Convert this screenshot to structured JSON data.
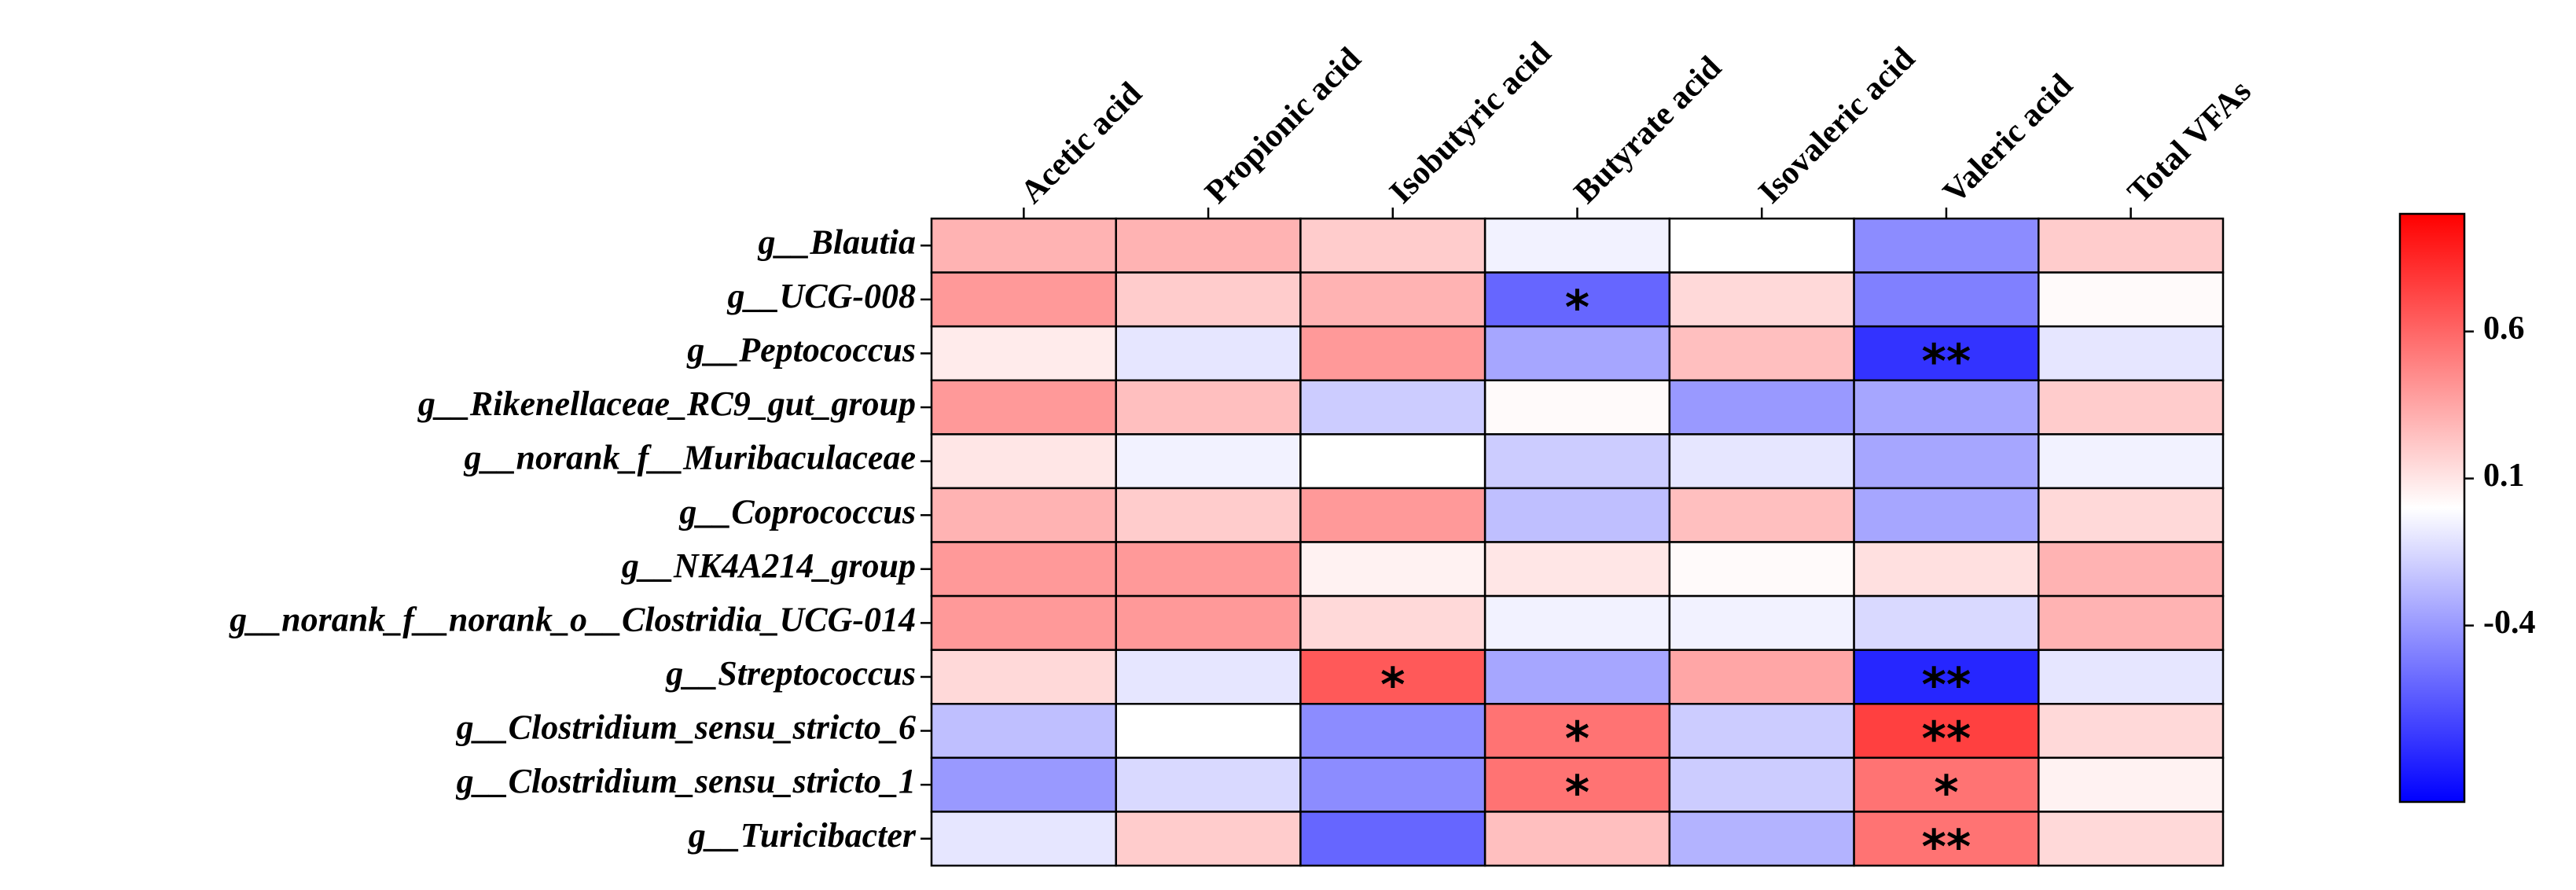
{
  "chart_data": {
    "type": "heatmap",
    "x_categories": [
      "Acetic acid",
      "Propionic acid",
      "Isobutyric acid",
      "Butyrate acid",
      "Isovaleric acid",
      "Valeric acid",
      "Total VFAs"
    ],
    "y_categories": [
      "g__Blautia",
      "g__UCG-008",
      "g__Peptococcus",
      "g__Rikenellaceae_RC9_gut_group",
      "g__norank_f__Muribaculaceae",
      "g__Coprococcus",
      "g__NK4A214_group",
      "g__norank_f__norank_o__Clostridia_UCG-014",
      "g__Streptococcus",
      "g__Clostridium_sensu_stricto_6",
      "g__Clostridium_sensu_stricto_1",
      "g__Turicibacter"
    ],
    "values": [
      [
        0.3,
        0.3,
        0.2,
        -0.05,
        0.0,
        -0.45,
        0.2
      ],
      [
        0.4,
        0.2,
        0.3,
        -0.6,
        0.15,
        -0.5,
        0.02
      ],
      [
        0.08,
        -0.1,
        0.4,
        -0.35,
        0.25,
        -0.8,
        -0.1
      ],
      [
        0.4,
        0.25,
        -0.2,
        0.02,
        -0.4,
        -0.35,
        0.2
      ],
      [
        0.1,
        -0.05,
        0.0,
        -0.2,
        -0.1,
        -0.35,
        -0.05
      ],
      [
        0.3,
        0.2,
        0.4,
        -0.25,
        0.25,
        -0.35,
        0.15
      ],
      [
        0.4,
        0.4,
        0.05,
        0.1,
        0.02,
        0.12,
        0.3
      ],
      [
        0.4,
        0.4,
        0.15,
        -0.05,
        -0.05,
        -0.15,
        0.3
      ],
      [
        0.15,
        -0.1,
        0.65,
        -0.35,
        0.35,
        -0.85,
        -0.1
      ],
      [
        -0.25,
        0.0,
        -0.45,
        0.55,
        -0.2,
        0.75,
        0.15
      ],
      [
        -0.4,
        -0.15,
        -0.45,
        0.55,
        -0.2,
        0.55,
        0.05
      ],
      [
        -0.1,
        0.2,
        -0.6,
        0.25,
        -0.3,
        0.55,
        0.15
      ]
    ],
    "annotations": [
      [
        null,
        null,
        null,
        null,
        null,
        null,
        null
      ],
      [
        null,
        null,
        null,
        "*",
        null,
        null,
        null
      ],
      [
        null,
        null,
        null,
        null,
        null,
        "**",
        null
      ],
      [
        null,
        null,
        null,
        null,
        null,
        null,
        null
      ],
      [
        null,
        null,
        null,
        null,
        null,
        null,
        null
      ],
      [
        null,
        null,
        null,
        null,
        null,
        null,
        null
      ],
      [
        null,
        null,
        null,
        null,
        null,
        null,
        null
      ],
      [
        null,
        null,
        null,
        null,
        null,
        null,
        null
      ],
      [
        null,
        null,
        "*",
        null,
        null,
        "**",
        null
      ],
      [
        null,
        null,
        null,
        "*",
        null,
        "**",
        null
      ],
      [
        null,
        null,
        null,
        "*",
        null,
        "*",
        null
      ],
      [
        null,
        null,
        null,
        null,
        null,
        "**",
        null
      ]
    ],
    "zlim": [
      -1,
      1
    ],
    "colorbar_ticks": [
      0.6,
      0.1,
      -0.4
    ],
    "colors": {
      "low": "#0000ff",
      "mid": "#ffffff",
      "high": "#ff0000"
    }
  }
}
